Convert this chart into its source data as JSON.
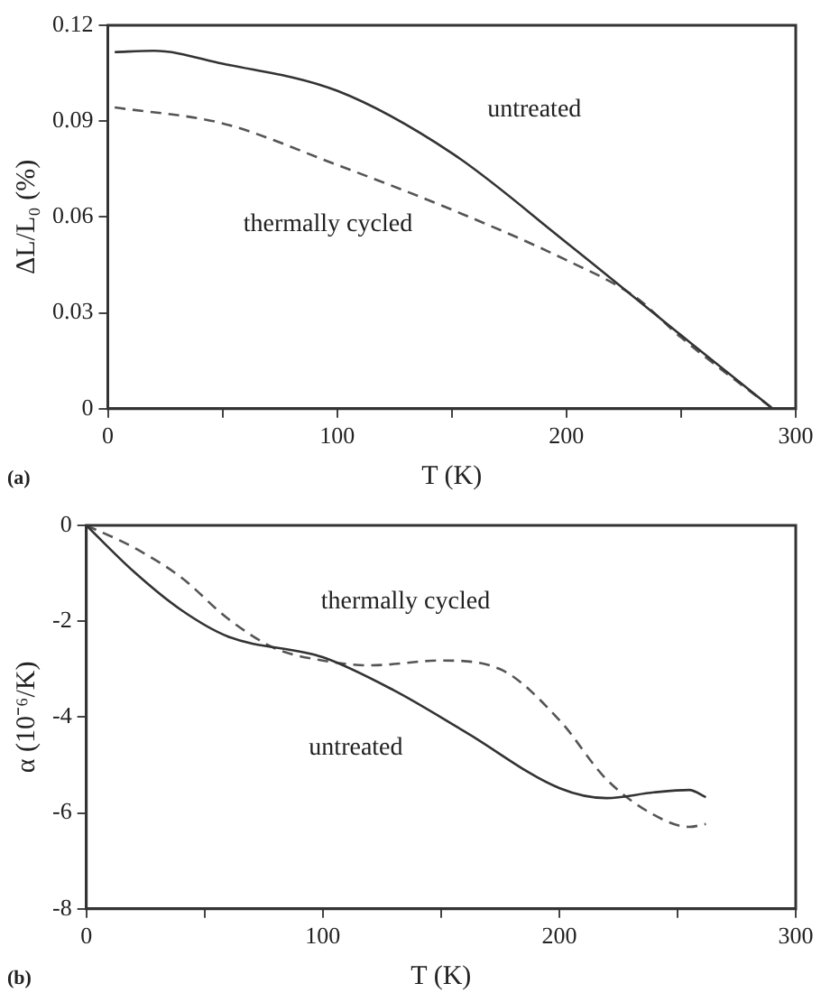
{
  "chart_data": [
    {
      "type": "line",
      "xlabel": "T (K)",
      "ylabel": "ΔL/L₀ (%)",
      "annotations": [
        "(a)"
      ],
      "xlim": [
        0,
        300
      ],
      "xticks": [
        0,
        {
          "value": 50,
          "label": null
        },
        100,
        {
          "value": 150,
          "label": null
        },
        200,
        {
          "value": 250,
          "label": null
        },
        300
      ],
      "ylim": [
        0,
        0.12
      ],
      "yticks": [
        0,
        0.03,
        0.06,
        0.09,
        0.12
      ],
      "grid": false,
      "legend": false,
      "marker": "none",
      "series": [
        {
          "name": "untreated",
          "color": "#333333",
          "line_style": "solid",
          "x": [
            3,
            20,
            50,
            100,
            150,
            200,
            250,
            290
          ],
          "values": [
            0.1116,
            0.112,
            0.108,
            0.0995,
            0.08,
            0.052,
            0.023,
            0
          ]
        },
        {
          "name": "thermally cycled",
          "color": "#555555",
          "line_style": "dashed",
          "x": [
            3,
            50,
            100,
            150,
            200,
            230,
            250,
            290
          ],
          "values": [
            0.0943,
            0.0893,
            0.0763,
            0.0623,
            0.0465,
            0.035,
            0.0223,
            0
          ]
        }
      ]
    },
    {
      "type": "line",
      "xlabel": "T (K)",
      "ylabel": "α (10⁻⁶/K)",
      "annotations": [
        "(b)"
      ],
      "xlim": [
        0,
        300
      ],
      "xticks": [
        0,
        {
          "value": 50,
          "label": null
        },
        100,
        {
          "value": 150,
          "label": null
        },
        200,
        {
          "value": 250,
          "label": null
        },
        300
      ],
      "ylim": [
        -8,
        0
      ],
      "yticks": [
        -8,
        -6,
        -4,
        -2,
        0
      ],
      "grid": false,
      "legend": false,
      "marker": "none",
      "series": [
        {
          "name": "untreated",
          "color": "#333333",
          "line_style": "solid",
          "x": [
            0,
            20,
            40,
            60,
            100,
            130,
            160,
            200,
            220,
            240,
            255,
            262
          ],
          "values": [
            0,
            -0.96,
            -1.76,
            -2.32,
            -2.75,
            -3.44,
            -4.3,
            -5.48,
            -5.69,
            -5.57,
            -5.52,
            -5.67
          ]
        },
        {
          "name": "thermally cycled",
          "color": "#555555",
          "line_style": "dashed",
          "x": [
            0,
            20,
            40,
            60,
            80,
            100,
            120,
            150,
            175,
            200,
            220,
            240,
            255,
            262
          ],
          "values": [
            0,
            -0.46,
            -1.08,
            -1.95,
            -2.57,
            -2.82,
            -2.92,
            -2.82,
            -3.0,
            -4.06,
            -5.3,
            -6.04,
            -6.29,
            -6.23
          ]
        }
      ]
    }
  ]
}
